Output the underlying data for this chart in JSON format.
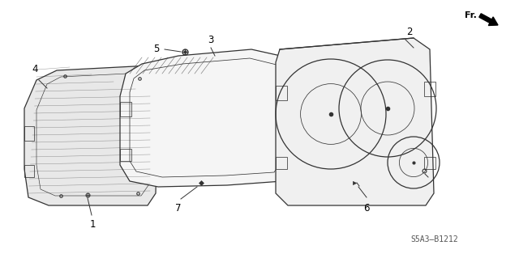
{
  "bg_color": "#ffffff",
  "line_color": "#333333",
  "diagram_ref": "S5A3–B1212",
  "fr_label": "Fr.",
  "label_fs": 8.5,
  "leader_lw": 0.7,
  "part_lw": 0.9
}
